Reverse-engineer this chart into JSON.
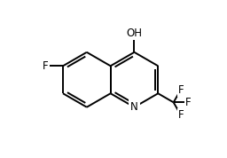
{
  "bg_color": "#ffffff",
  "line_color": "#000000",
  "line_width": 1.4,
  "font_size": 8.5,
  "figsize": [
    2.56,
    1.78
  ],
  "dpi": 100,
  "xlim": [
    -0.05,
    1.1
  ],
  "ylim": [
    -0.05,
    1.1
  ]
}
